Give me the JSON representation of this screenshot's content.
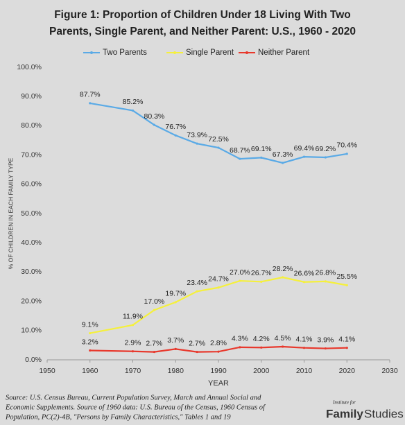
{
  "chart_data": {
    "type": "line",
    "title": [
      "Figure 1: Proportion of Children Under 18 Living With Two",
      "Parents, Single Parent, and Neither Parent: U.S., 1960 - 2020"
    ],
    "x_label": "YEAR",
    "y_label": "% OF CHILDREN IN EACH FAMILY TYPE",
    "x": [
      1960,
      1970,
      1975,
      1980,
      1985,
      1990,
      1995,
      2000,
      2005,
      2010,
      2015,
      2020
    ],
    "series": [
      {
        "name": "Two Parents",
        "color": "#5aaae6",
        "values": [
          87.7,
          85.2,
          80.3,
          76.7,
          73.9,
          72.5,
          68.7,
          69.1,
          67.3,
          69.4,
          69.2,
          70.4
        ],
        "value_labels": [
          "87.7%",
          "85.2%",
          "80.3%",
          "76.7%",
          "73.9%",
          "72.5%",
          "68.7%",
          "69.1%",
          "67.3%",
          "69.4%",
          "69.2%",
          "70.4%"
        ]
      },
      {
        "name": "Single Parent",
        "color": "#f5f03c",
        "values": [
          9.1,
          11.9,
          17.0,
          19.7,
          23.4,
          24.7,
          27.0,
          26.7,
          28.2,
          26.6,
          26.8,
          25.5
        ],
        "value_labels": [
          "9.1%",
          "11.9%",
          "17.0%",
          "19.7%",
          "23.4%",
          "24.7%",
          "27.0%",
          "26.7%",
          "28.2%",
          "26.6%",
          "26.8%",
          "25.5%"
        ]
      },
      {
        "name": "Neither Parent",
        "color": "#e8382c",
        "values": [
          3.2,
          2.9,
          2.7,
          3.7,
          2.7,
          2.8,
          4.3,
          4.2,
          4.5,
          4.1,
          3.9,
          4.1
        ],
        "value_labels": [
          "3.2%",
          "2.9%",
          "2.7%",
          "3.7%",
          "2.7%",
          "2.8%",
          "4.3%",
          "4.2%",
          "4.5%",
          "4.1%",
          "3.9%",
          "4.1%"
        ]
      }
    ],
    "xlim": [
      1950,
      2030
    ],
    "xticks": [
      1950,
      1960,
      1970,
      1980,
      1990,
      2000,
      2010,
      2020,
      2030
    ],
    "ylim": [
      0,
      100
    ],
    "yticks": [
      {
        "value": 0,
        "label": "0.0%"
      },
      {
        "value": 10,
        "label": "10.0%"
      },
      {
        "value": 20,
        "label": "20.0%"
      },
      {
        "value": 30,
        "label": "30.0%"
      },
      {
        "value": 40,
        "label": "40.0%"
      },
      {
        "value": 50,
        "label": "50.0%"
      },
      {
        "value": 60,
        "label": "60.0%"
      },
      {
        "value": 70,
        "label": "70.0%"
      },
      {
        "value": 80,
        "label": "80.0%"
      },
      {
        "value": 90,
        "label": "90.0%"
      },
      {
        "value": 100,
        "label": "100.0%"
      }
    ],
    "grid": false,
    "legend": "top",
    "source": [
      "Source:  U.S. Census Bureau, Current Population Survey, March and Annual Social and",
      "Economic Supplements. Source of 1960 data:  U.S. Bureau of the Census, 1960 Census of",
      "Population, PC(2)-4B, \"Persons by Family Characteristics,\" Tables 1 and 19"
    ],
    "logo": {
      "small": "Institute for",
      "big": "Family",
      "big2": "Studies"
    }
  }
}
